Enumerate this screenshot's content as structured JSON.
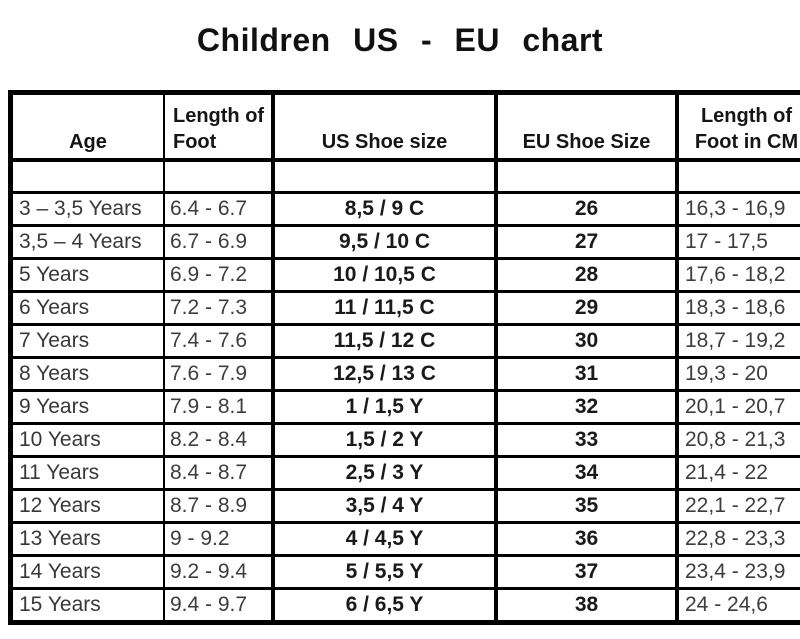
{
  "title": "Children US - EU chart",
  "chart_data": {
    "type": "table",
    "title": "Children US - EU chart",
    "columns": [
      "Age",
      "Length of Foot",
      "US Shoe size",
      "EU Shoe Size",
      "Length of Foot in CM"
    ],
    "rows": [
      [
        "3 – 3,5 Years",
        "6.4 - 6.7",
        "8,5 / 9 C",
        "26",
        "16,3 - 16,9"
      ],
      [
        "3,5 – 4 Years",
        "6.7 - 6.9",
        "9,5 / 10 C",
        "27",
        "17 - 17,5"
      ],
      [
        "5 Years",
        "6.9 - 7.2",
        "10 / 10,5 C",
        "28",
        "17,6 - 18,2"
      ],
      [
        "6 Years",
        "7.2 - 7.3",
        "11 / 11,5 C",
        "29",
        "18,3 - 18,6"
      ],
      [
        "7 Years",
        "7.4 - 7.6",
        "11,5 / 12 C",
        "30",
        "18,7 - 19,2"
      ],
      [
        "8 Years",
        "7.6 - 7.9",
        "12,5 / 13 C",
        "31",
        "19,3 - 20"
      ],
      [
        "9 Years",
        "7.9 - 8.1",
        "1 / 1,5 Y",
        "32",
        "20,1 - 20,7"
      ],
      [
        "10 Years",
        "8.2 - 8.4",
        "1,5 / 2 Y",
        "33",
        "20,8 - 21,3"
      ],
      [
        "11 Years",
        "8.4 - 8.7",
        "2,5 / 3 Y",
        "34",
        "21,4 - 22"
      ],
      [
        "12 Years",
        "8.7 - 8.9",
        "3,5 / 4 Y",
        "35",
        "22,1 - 22,7"
      ],
      [
        "13 Years",
        "9 - 9.2",
        "4 / 4,5 Y",
        "36",
        "22,8 - 23,3"
      ],
      [
        "14 Years",
        "9.2 - 9.4",
        "5 / 5,5 Y",
        "37",
        "23,4 - 23,9"
      ],
      [
        "15 Years",
        "9.4 - 9.7",
        "6 / 6,5 Y",
        "38",
        "24 - 24,6"
      ]
    ]
  },
  "text_color": "#1a1a1a",
  "border_color": "#000000",
  "background_color": "#ffffff"
}
